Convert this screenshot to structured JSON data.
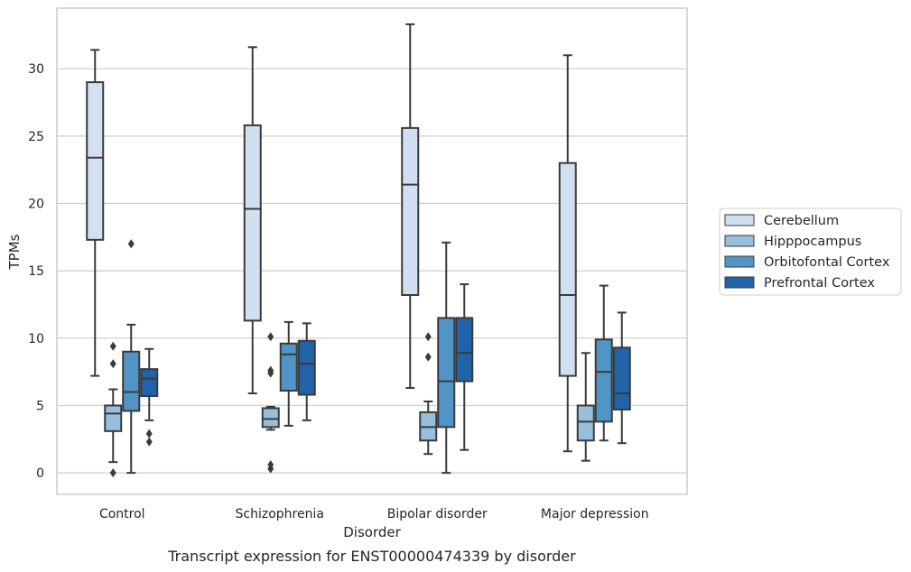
{
  "chart_data": {
    "type": "box",
    "title": "",
    "caption": "Transcript expression for ENST00000474339 by disorder",
    "xlabel": "Disorder",
    "ylabel": "TPMs",
    "ylim": [
      -1.6,
      34.5
    ],
    "yticks": [
      0,
      5,
      10,
      15,
      20,
      25,
      30
    ],
    "grid": "horizontal",
    "legend_position": "right",
    "categories": [
      "Control",
      "Schizophrenia",
      "Bipolar disorder",
      "Major depression"
    ],
    "series": [
      {
        "name": "Cerebellum",
        "color": "#d1e0f0",
        "boxes": [
          {
            "whislo": 7.2,
            "q1": 17.3,
            "med": 23.4,
            "q3": 29.0,
            "whishi": 31.4,
            "fliers": []
          },
          {
            "whislo": 5.9,
            "q1": 11.3,
            "med": 19.6,
            "q3": 25.8,
            "whishi": 31.6,
            "fliers": []
          },
          {
            "whislo": 6.3,
            "q1": 13.2,
            "med": 21.4,
            "q3": 25.6,
            "whishi": 33.3,
            "fliers": []
          },
          {
            "whislo": 1.6,
            "q1": 7.2,
            "med": 13.2,
            "q3": 23.0,
            "whishi": 31.0,
            "fliers": []
          }
        ]
      },
      {
        "name": "Hipppocampus",
        "color": "#95bfdc",
        "boxes": [
          {
            "whislo": 0.8,
            "q1": 3.1,
            "med": 4.4,
            "q3": 5.0,
            "whishi": 6.2,
            "fliers": [
              0.0,
              8.1,
              9.4
            ]
          },
          {
            "whislo": 3.2,
            "q1": 3.4,
            "med": 4.0,
            "q3": 4.8,
            "whishi": 4.9,
            "fliers": [
              0.3,
              0.6,
              7.4,
              7.6,
              10.1
            ]
          },
          {
            "whislo": 1.4,
            "q1": 2.4,
            "med": 3.4,
            "q3": 4.5,
            "whishi": 5.3,
            "fliers": [
              8.6,
              10.1
            ]
          },
          {
            "whislo": 0.9,
            "q1": 2.4,
            "med": 3.8,
            "q3": 5.0,
            "whishi": 8.9,
            "fliers": []
          }
        ]
      },
      {
        "name": "Orbitofontal Cortex",
        "color": "#5195c6",
        "boxes": [
          {
            "whislo": 0.0,
            "q1": 4.6,
            "med": 6.0,
            "q3": 9.0,
            "whishi": 11.0,
            "fliers": [
              17.0
            ]
          },
          {
            "whislo": 3.5,
            "q1": 6.1,
            "med": 8.8,
            "q3": 9.6,
            "whishi": 11.2,
            "fliers": []
          },
          {
            "whislo": 0.0,
            "q1": 3.4,
            "med": 6.8,
            "q3": 11.5,
            "whishi": 17.1,
            "fliers": []
          },
          {
            "whislo": 2.4,
            "q1": 3.8,
            "med": 7.5,
            "q3": 9.9,
            "whishi": 13.9,
            "fliers": []
          }
        ]
      },
      {
        "name": "Prefrontal Cortex",
        "color": "#2163a8",
        "boxes": [
          {
            "whislo": 3.9,
            "q1": 5.7,
            "med": 7.0,
            "q3": 7.7,
            "whishi": 9.2,
            "fliers": [
              2.3,
              2.9
            ]
          },
          {
            "whislo": 3.9,
            "q1": 5.8,
            "med": 8.1,
            "q3": 9.8,
            "whishi": 11.1,
            "fliers": []
          },
          {
            "whislo": 1.7,
            "q1": 6.8,
            "med": 8.9,
            "q3": 11.5,
            "whishi": 14.0,
            "fliers": []
          },
          {
            "whislo": 2.2,
            "q1": 4.7,
            "med": 5.9,
            "q3": 9.3,
            "whishi": 11.9,
            "fliers": []
          }
        ]
      }
    ]
  }
}
